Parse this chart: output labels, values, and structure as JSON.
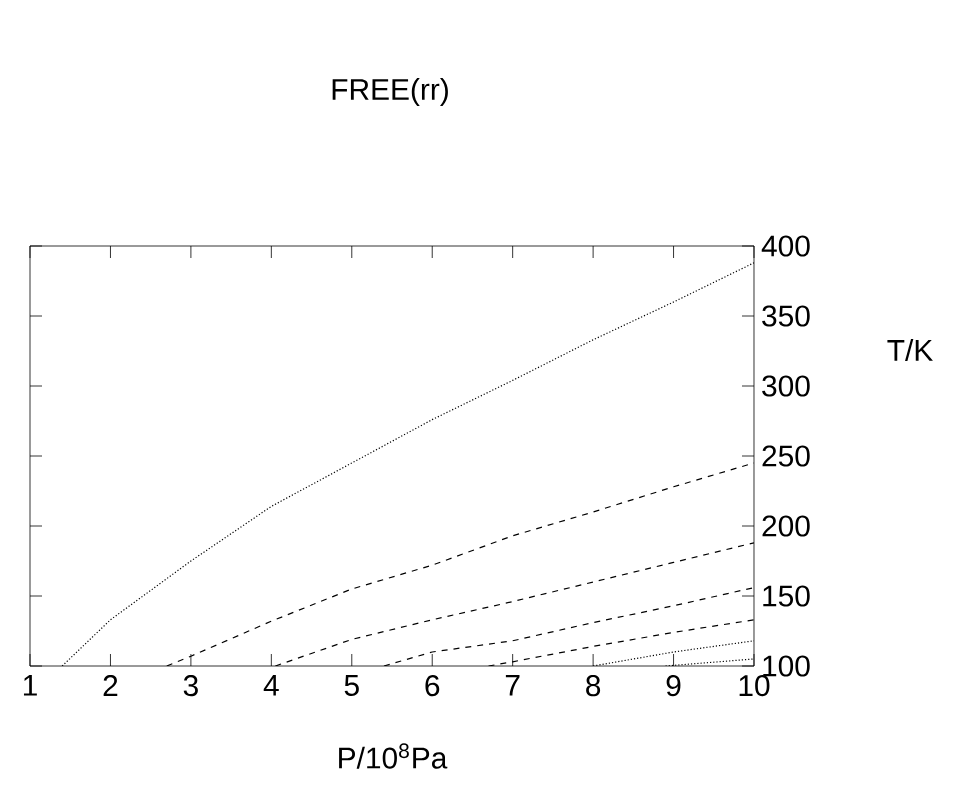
{
  "chart_data": {
    "type": "line",
    "title": "FREE(rr)",
    "xlabel": "P/10$^{8}$Pa",
    "ylabel": "T/K",
    "xlim": [
      1,
      10
    ],
    "ylim": [
      100,
      400
    ],
    "xticks": [
      1,
      2,
      3,
      4,
      5,
      6,
      7,
      8,
      9,
      10
    ],
    "yticks": [
      100,
      150,
      200,
      250,
      300,
      350,
      400
    ],
    "marker": "none",
    "series": [
      {
        "color": "#000000",
        "line_style": "dotted",
        "x": [
          1.4,
          2,
          3,
          4,
          5,
          6,
          7,
          8,
          9,
          10
        ],
        "values": [
          100,
          133,
          175,
          214,
          245,
          276,
          304,
          333,
          360,
          388
        ]
      },
      {
        "color": "#000000",
        "line_style": "dashed",
        "x": [
          2.7,
          3,
          4,
          5,
          6,
          7,
          8,
          9,
          10
        ],
        "values": [
          100,
          107,
          132,
          155,
          172,
          193,
          210,
          228,
          245
        ]
      },
      {
        "color": "#000000",
        "line_style": "dashed",
        "x": [
          4.05,
          5,
          6,
          7,
          8,
          9,
          10
        ],
        "values": [
          100,
          119,
          133,
          146,
          160,
          174,
          188
        ]
      },
      {
        "color": "#000000",
        "line_style": "dashed",
        "x": [
          5.4,
          6,
          7,
          8,
          9,
          10
        ],
        "values": [
          100,
          110,
          118,
          131,
          143,
          156
        ]
      },
      {
        "color": "#000000",
        "line_style": "dashed",
        "x": [
          6.7,
          7,
          8,
          9,
          10
        ],
        "values": [
          100,
          103,
          114,
          124,
          133
        ]
      },
      {
        "color": "#000000",
        "line_style": "dotted",
        "x": [
          8.0,
          9,
          10
        ],
        "values": [
          100,
          110,
          118
        ]
      },
      {
        "color": "#000000",
        "line_style": "dotted",
        "x": [
          8.9,
          10
        ],
        "values": [
          100,
          105
        ]
      }
    ]
  }
}
